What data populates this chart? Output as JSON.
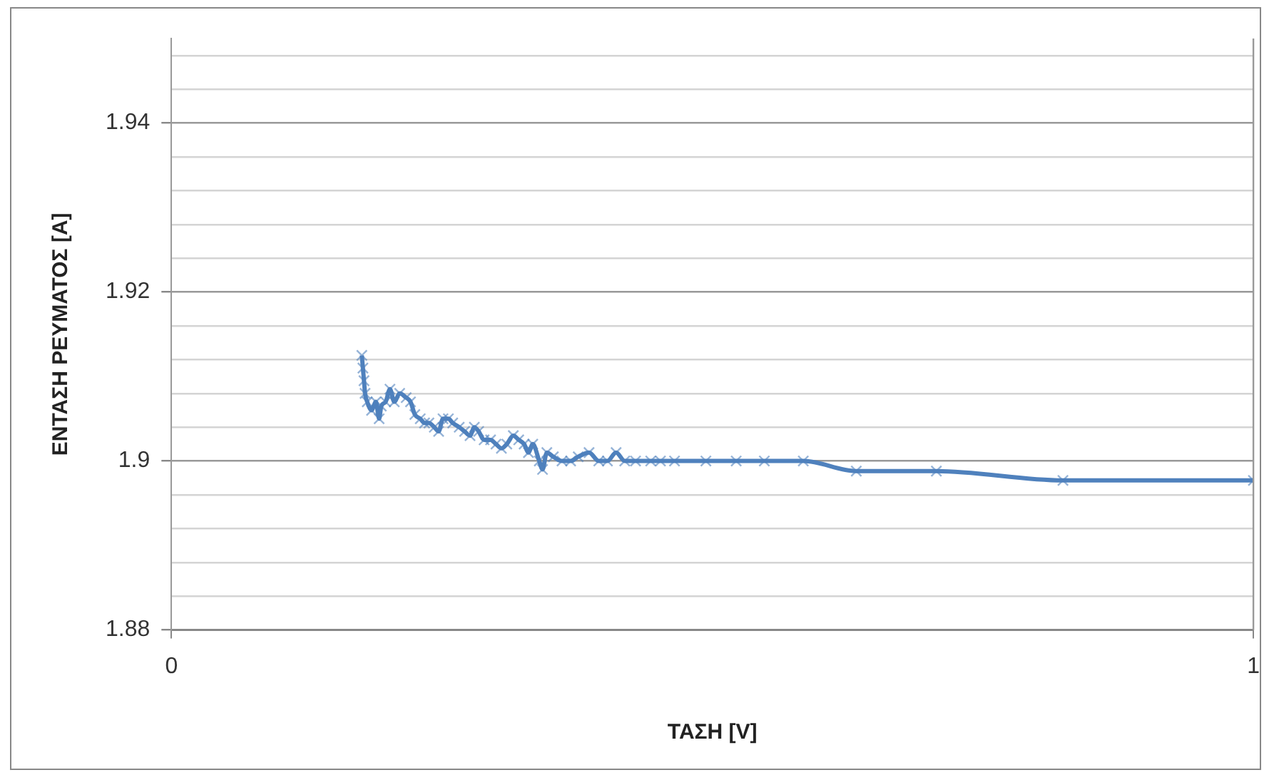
{
  "chart_data": {
    "type": "line",
    "xlabel": "ΤΑΣΗ [V]",
    "ylabel": "ΕΝΤΑΣΗ ΡΕΥΜΑΤΟΣ [A]",
    "xlim": [
      0,
      1
    ],
    "xticks": [
      0,
      1
    ],
    "ylim": [
      1.88,
      1.95
    ],
    "yticks": [
      1.88,
      {
        "value": 1.884,
        "label": null
      },
      {
        "value": 1.888,
        "label": null
      },
      {
        "value": 1.892,
        "label": null
      },
      {
        "value": 1.896,
        "label": null
      },
      1.9,
      {
        "value": 1.904,
        "label": null
      },
      {
        "value": 1.908,
        "label": null
      },
      {
        "value": 1.912,
        "label": null
      },
      {
        "value": 1.916,
        "label": null
      },
      1.92,
      {
        "value": 1.924,
        "label": null
      },
      {
        "value": 1.928,
        "label": null
      },
      {
        "value": 1.932,
        "label": null
      },
      {
        "value": 1.936,
        "label": null
      },
      1.94,
      {
        "value": 1.944,
        "label": null
      },
      {
        "value": 1.948,
        "label": null
      }
    ],
    "grid": "y",
    "legend": false,
    "marker": "cross",
    "line_style": "solid",
    "series": [
      {
        "color": "#4f81bd",
        "x": [
          0.176,
          0.177,
          0.178,
          0.179,
          0.181,
          0.185,
          0.189,
          0.192,
          0.194,
          0.198,
          0.202,
          0.206,
          0.211,
          0.217,
          0.221,
          0.225,
          0.23,
          0.234,
          0.238,
          0.243,
          0.247,
          0.251,
          0.256,
          0.26,
          0.266,
          0.271,
          0.276,
          0.28,
          0.284,
          0.289,
          0.295,
          0.3,
          0.305,
          0.31,
          0.316,
          0.321,
          0.326,
          0.33,
          0.334,
          0.34,
          0.343,
          0.347,
          0.353,
          0.361,
          0.369,
          0.376,
          0.386,
          0.395,
          0.403,
          0.411,
          0.419,
          0.429,
          0.443,
          0.452,
          0.465,
          0.494,
          0.522,
          0.548,
          0.584,
          0.633,
          0.707,
          0.824,
          1
        ],
        "values": [
          1.9125,
          1.911,
          1.9095,
          1.908,
          1.907,
          1.906,
          1.907,
          1.905,
          1.9065,
          1.907,
          1.9085,
          1.907,
          1.908,
          1.9075,
          1.907,
          1.9055,
          1.905,
          1.9045,
          1.9045,
          1.904,
          1.9035,
          1.905,
          1.905,
          1.9045,
          1.904,
          1.9035,
          1.903,
          1.904,
          1.9035,
          1.9025,
          1.9025,
          1.902,
          1.9015,
          1.902,
          1.903,
          1.9025,
          1.902,
          1.901,
          1.902,
          1.9,
          1.899,
          1.901,
          1.9005,
          1.9,
          1.9,
          1.9005,
          1.901,
          1.9,
          1.9,
          1.901,
          1.9,
          1.9,
          1.9,
          1.9,
          1.9,
          1.9,
          1.9,
          1.9,
          1.9,
          1.8988,
          1.8988,
          1.8977,
          1.8977
        ]
      }
    ]
  }
}
